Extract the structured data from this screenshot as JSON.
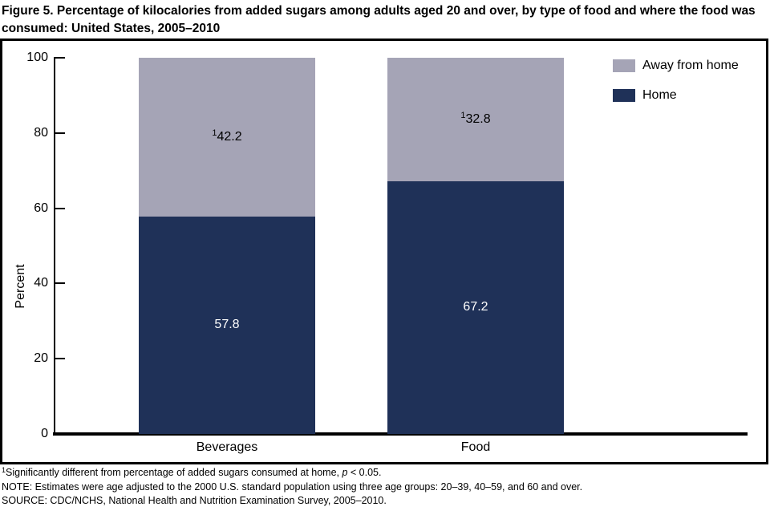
{
  "title": "Figure 5. Percentage of kilocalories from added sugars among adults aged 20 and over, by type of food and where the food was consumed: United States, 2005–2010",
  "chart_data": {
    "type": "bar",
    "subtype": "stacked",
    "categories": [
      "Beverages",
      "Food"
    ],
    "series": [
      {
        "name": "Home",
        "color": "#1f3158",
        "label_color": "#ffffff",
        "values": [
          57.8,
          67.2
        ],
        "significant": [
          false,
          false
        ]
      },
      {
        "name": "Away from home",
        "color": "#a5a4b6",
        "label_color": "#000000",
        "values": [
          42.2,
          32.8
        ],
        "significant": [
          true,
          true
        ]
      }
    ],
    "ylabel": "Percent",
    "ylim": [
      0,
      100
    ],
    "yticks": [
      0,
      20,
      40,
      60,
      80,
      100
    ],
    "grid": false,
    "legend_position": "top-right",
    "legend": [
      {
        "label": "Away from home",
        "color": "#a5a4b6"
      },
      {
        "label": "Home",
        "color": "#1f3158"
      }
    ],
    "significance_marker": "1"
  },
  "footnotes": [
    {
      "sup": "1",
      "text": "Significantly different from percentage of added sugars consumed at home, ",
      "italic": "p",
      "tail": " < 0.05."
    },
    {
      "text": "NOTE: Estimates were age adjusted to the 2000 U.S. standard population using three age groups: 20–39, 40–59, and 60 and over."
    },
    {
      "text": "SOURCE: CDC/NCHS, National Health and Nutrition Examination Survey, 2005–2010."
    }
  ]
}
